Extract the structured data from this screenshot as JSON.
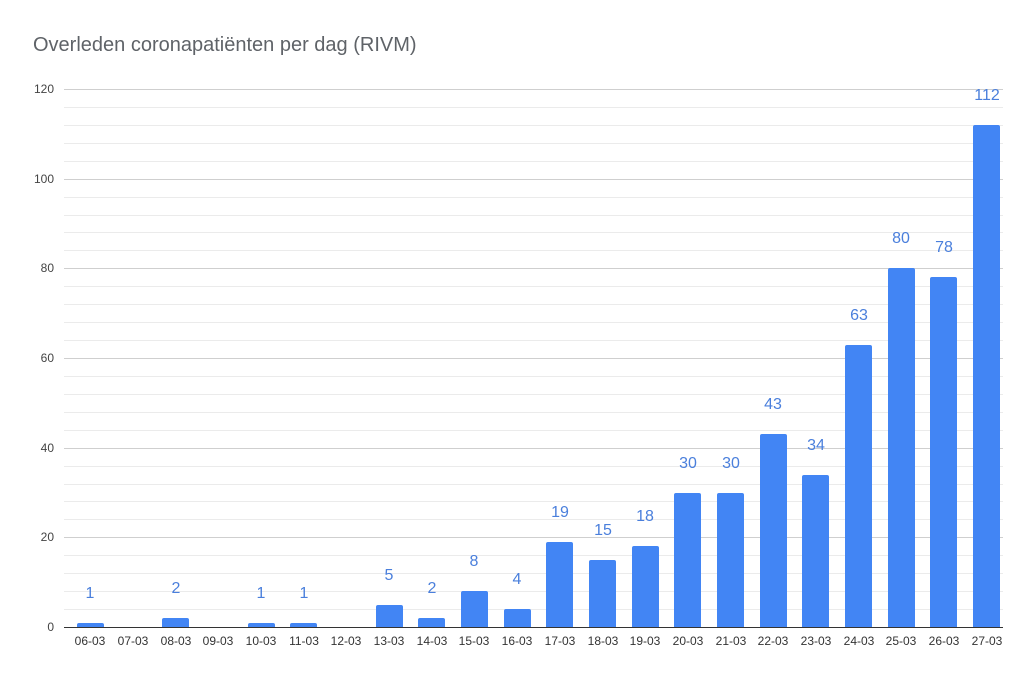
{
  "chart_data": {
    "type": "bar",
    "title": "Overleden coronapatiënten per dag (RIVM)",
    "xlabel": "",
    "ylabel": "",
    "ylim": [
      0,
      120
    ],
    "yticks": [
      0,
      20,
      40,
      60,
      80,
      100,
      120
    ],
    "minor_grid_step": 4,
    "grid": true,
    "legend": "none",
    "bar_color": "#4285f4",
    "label_color": "#4a7fdc",
    "categories": [
      "06-03",
      "07-03",
      "08-03",
      "09-03",
      "10-03",
      "11-03",
      "12-03",
      "13-03",
      "14-03",
      "15-03",
      "16-03",
      "17-03",
      "18-03",
      "19-03",
      "20-03",
      "21-03",
      "22-03",
      "23-03",
      "24-03",
      "25-03",
      "26-03",
      "27-03"
    ],
    "values": [
      1,
      0,
      2,
      0,
      1,
      1,
      0,
      5,
      2,
      8,
      4,
      19,
      15,
      18,
      30,
      30,
      43,
      34,
      63,
      80,
      78,
      112
    ],
    "data_labels": [
      "1",
      "",
      "2",
      "",
      "1",
      "1",
      "",
      "5",
      "2",
      "8",
      "4",
      "19",
      "15",
      "18",
      "30",
      "30",
      "43",
      "34",
      "63",
      "80",
      "78",
      "112"
    ]
  }
}
